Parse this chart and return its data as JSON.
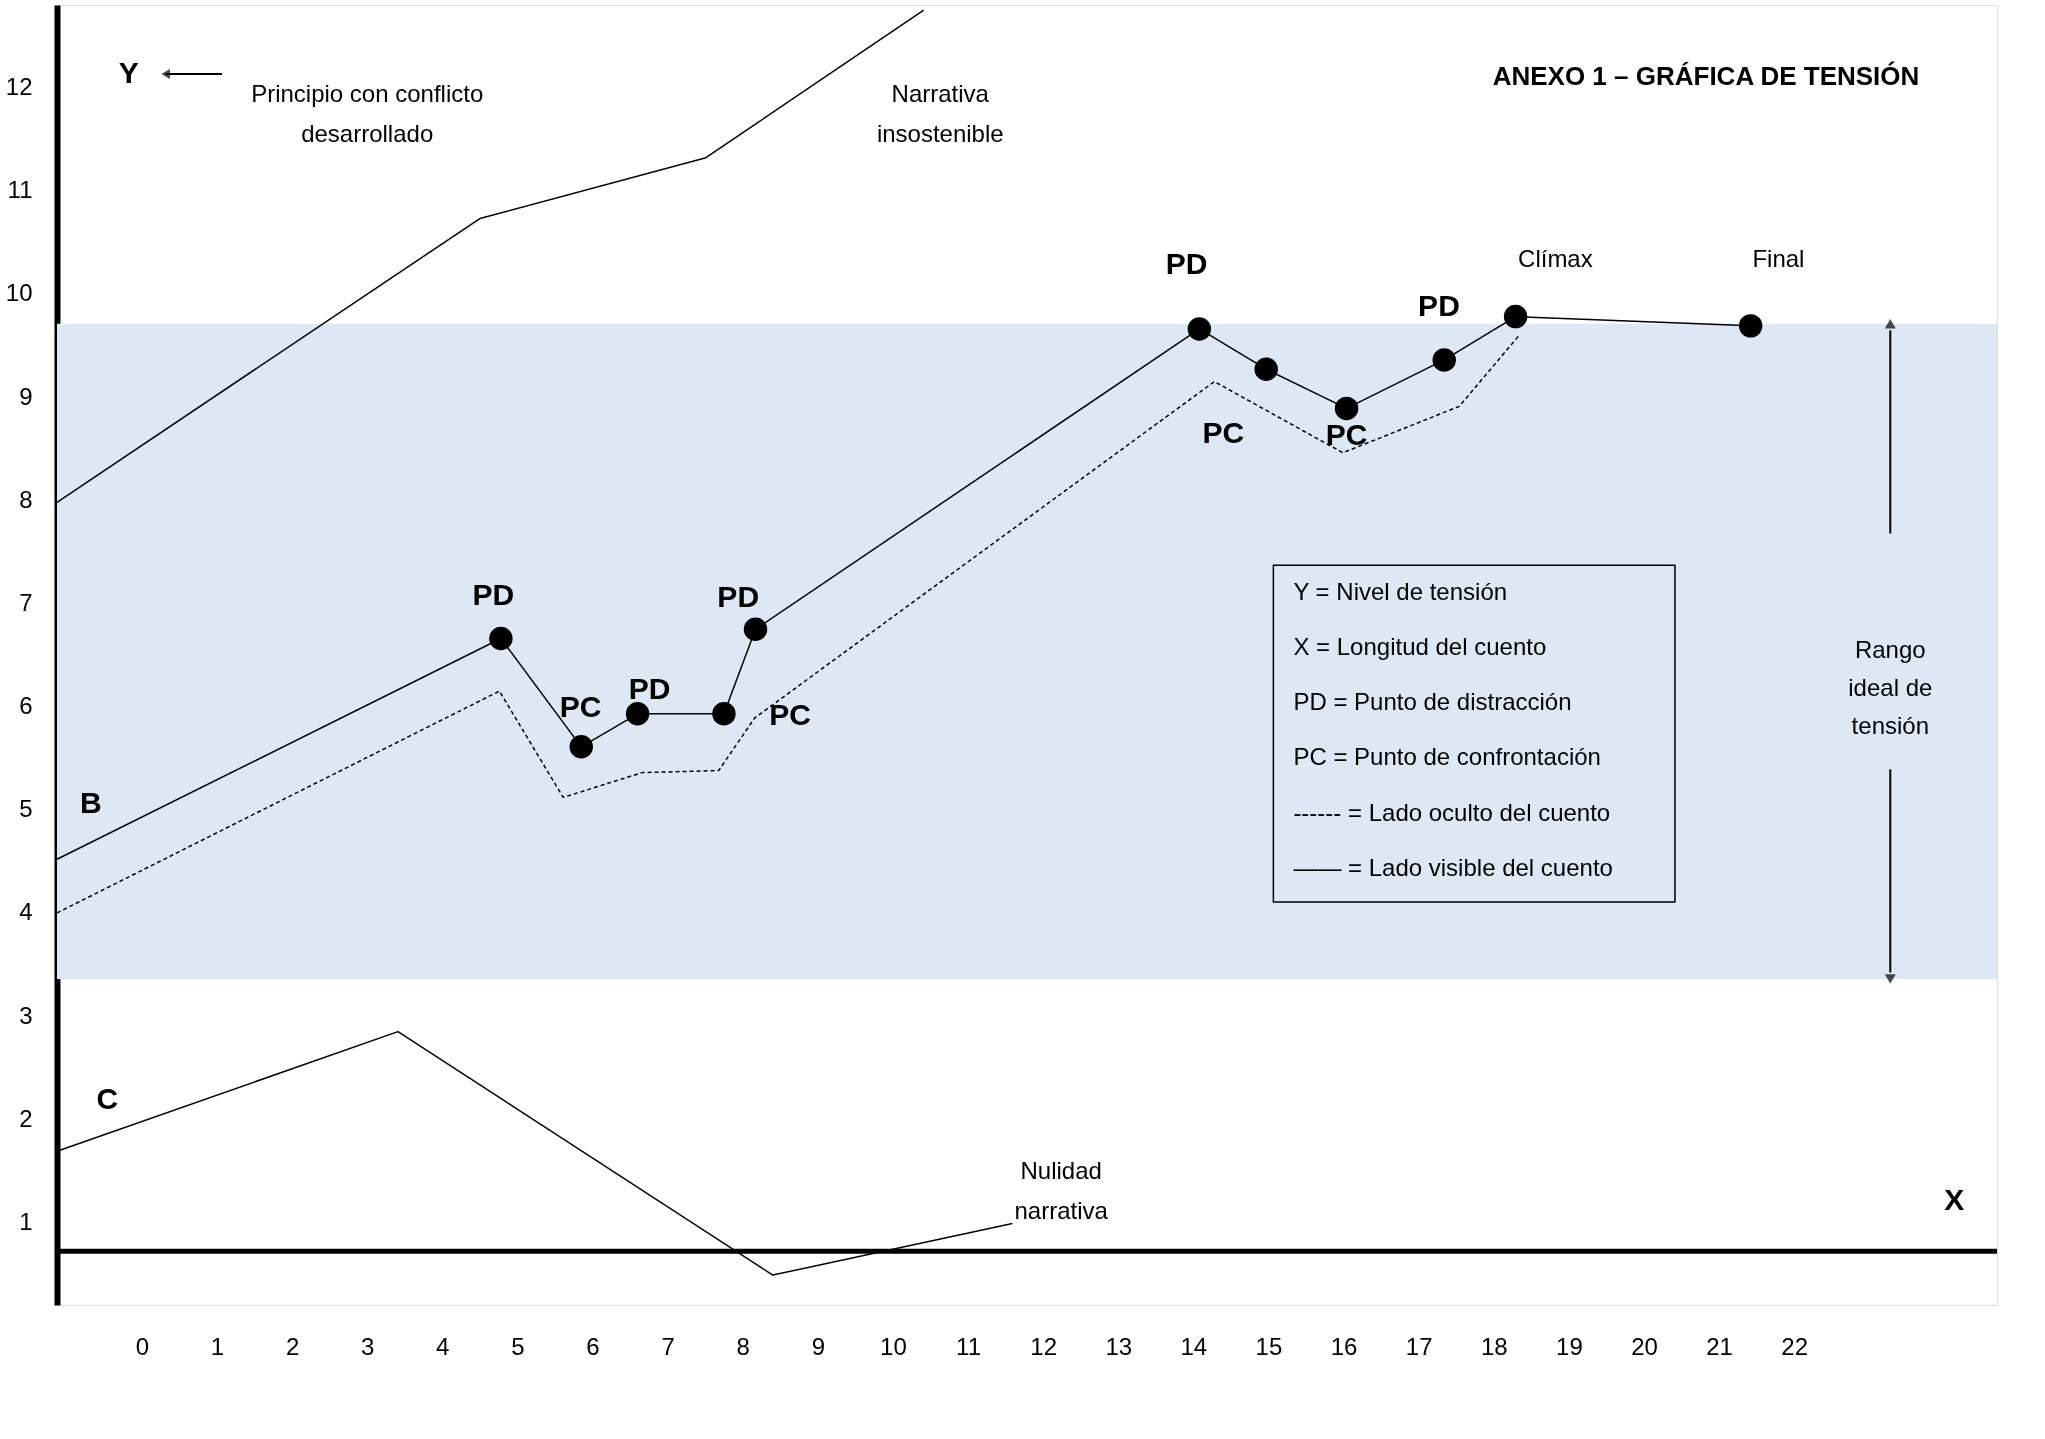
{
  "chart_data": {
    "type": "line",
    "title": "ANEXO 1 – GRÁFICA DE TENSIÓN",
    "xlabel": "X",
    "ylabel": "Y",
    "xlim": [
      -1.13,
      24.7
    ],
    "ylim": [
      0.2,
      12.8
    ],
    "xticks": [
      0,
      1,
      2,
      3,
      4,
      5,
      6,
      7,
      8,
      9,
      10,
      11,
      12,
      13,
      14,
      15,
      16,
      17,
      18,
      19,
      20,
      21,
      22
    ],
    "yticks": [
      1,
      2,
      3,
      4,
      5,
      6,
      7,
      8,
      9,
      10,
      11,
      12
    ],
    "grid": false,
    "series": [
      {
        "color": "#000000",
        "marker": "none",
        "line_style": "solid",
        "x": [
          -1.13,
          4.5,
          7.51,
          10.41
        ],
        "values": [
          7.98,
          10.73,
          11.32,
          12.75
        ]
      },
      {
        "color": "#000000",
        "marker": "circle",
        "line_style": "solid",
        "x": [
          -1.13,
          4.78,
          5.85,
          6.6,
          7.75,
          8.17,
          14.08,
          14.97,
          16.04,
          17.34,
          18.29,
          21.42
        ],
        "values": [
          4.52,
          6.66,
          5.61,
          5.93,
          5.93,
          6.75,
          9.66,
          9.27,
          8.89,
          9.36,
          9.78,
          9.69
        ]
      },
      {
        "color": "#000000",
        "marker": "none",
        "line_style": "dashed",
        "x": [
          -1.13,
          4.76,
          5.61,
          6.66,
          7.68,
          8.16,
          14.28,
          15.99,
          17.54,
          18.34
        ],
        "values": [
          4.0,
          6.15,
          5.12,
          5.36,
          5.38,
          5.89,
          9.15,
          8.46,
          8.91,
          9.6
        ]
      },
      {
        "color": "#000000",
        "marker": "none",
        "line_style": "solid",
        "x": [
          -1.13,
          3.41,
          8.4,
          11.59
        ],
        "values": [
          1.69,
          2.85,
          0.49,
          0.99
        ]
      }
    ],
    "bands": [
      {
        "axis": "y",
        "from": 3.36,
        "to": 9.71,
        "label": "Rango\nideal de\ntensión",
        "color": "#dde8f4"
      }
    ],
    "ref_lines": [
      {
        "axis": "y",
        "value": 0.72,
        "label": null
      }
    ],
    "annotations": [
      "PD",
      "PC",
      "PD",
      "PD",
      "PC",
      "PD",
      "PC",
      "PC",
      "PD",
      "Clímax",
      "Final",
      "B",
      "C",
      "Principio con conflicto\ndesarrollado",
      "Narrativa\ninsostenible",
      "Nulidad\nnarrativa",
      "Y = Nivel de tensión",
      "X = Longitud del cuento",
      "PD = Punto de distracción",
      "PC = Punto de confrontación",
      "------ = Lado oculto del cuento",
      "—— = Lado visible del cuento"
    ]
  }
}
